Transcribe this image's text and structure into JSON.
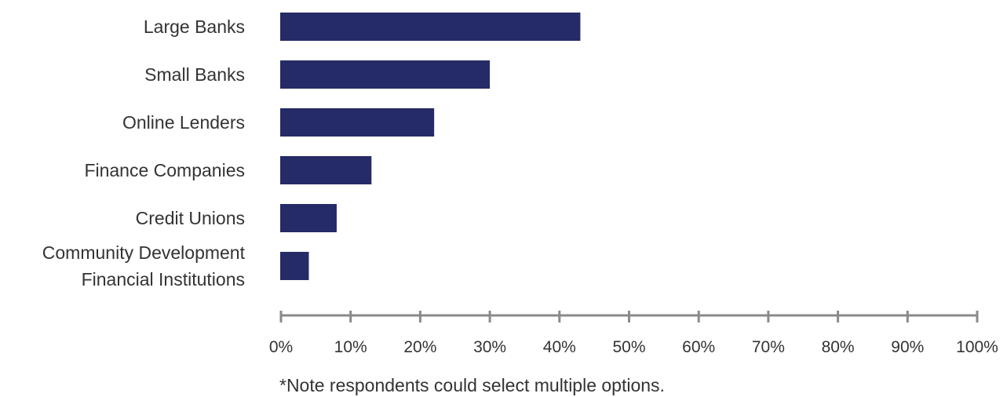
{
  "chart_data": {
    "type": "bar",
    "orientation": "horizontal",
    "categories": [
      [
        "Large Banks"
      ],
      [
        "Small Banks"
      ],
      [
        "Online Lenders"
      ],
      [
        "Finance Companies"
      ],
      [
        "Credit Unions"
      ],
      [
        "Community Development",
        "Financial Institutions"
      ]
    ],
    "values": [
      43,
      30,
      22,
      13,
      8,
      4
    ],
    "xlim": [
      0,
      100
    ],
    "ticks": [
      0,
      10,
      20,
      30,
      40,
      50,
      60,
      70,
      80,
      90,
      100
    ],
    "tick_labels": [
      "0%",
      "10%",
      "20%",
      "30%",
      "40%",
      "50%",
      "60%",
      "70%",
      "80%",
      "90%",
      "100%"
    ],
    "grid": false,
    "legend": "none",
    "bar_color": "#252b66",
    "axis_color": "#8a8a8a",
    "note": "*Note respondents could select multiple options."
  }
}
